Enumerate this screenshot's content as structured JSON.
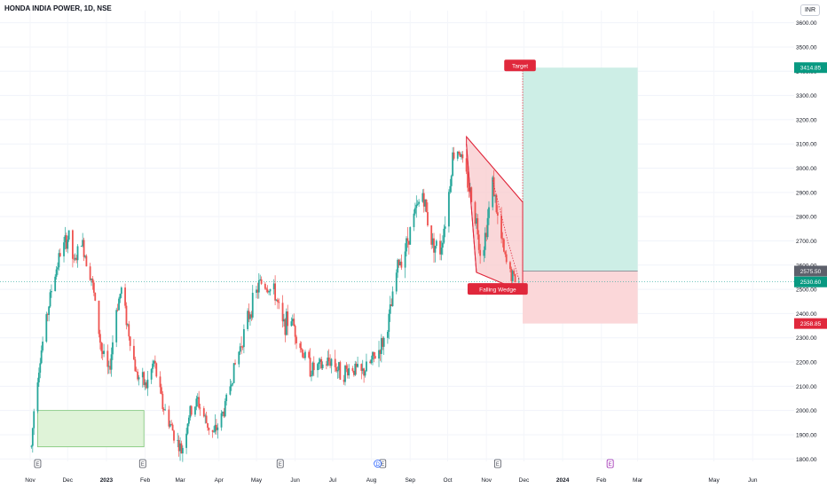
{
  "header": {
    "title": "HONDA INDIA POWER, 1D, NSE",
    "currency": "INR"
  },
  "colors": {
    "up": "#26a69a",
    "down": "#ef5350",
    "target_zone": "#cdeee6",
    "stop_zone": "#fbd7d9",
    "demand_zone": "#dff3d8",
    "wedge_fill": "#f8c9cc",
    "label_red": "#e0283c",
    "label_green": "#089981",
    "label_gray": "#5d606b"
  },
  "chart_data": {
    "type": "candlestick",
    "ylim": [
      1790,
      3650
    ],
    "y_ticks": [
      1800,
      1900,
      2000,
      2100,
      2200,
      2300,
      2400,
      2500,
      2600,
      2700,
      2800,
      2900,
      3000,
      3100,
      3200,
      3300,
      3400,
      3500,
      3600
    ],
    "y_tick_labels": [
      "1800.00",
      "1900.00",
      "2000.00",
      "2100.00",
      "2200.00",
      "2300.00",
      "2400.00",
      "2500.00",
      "2600.00",
      "2700.00",
      "2800.00",
      "2900.00",
      "3000.00",
      "3100.00",
      "3200.00",
      "3300.00",
      "3400.00",
      "3500.00",
      "3600.00"
    ],
    "x_range": [
      "2022-11-01",
      "2024-06-20"
    ],
    "x_ticks": [
      {
        "date": "2022-11-01",
        "label": "Nov"
      },
      {
        "date": "2022-12-01",
        "label": "Dec"
      },
      {
        "date": "2023-01-01",
        "label": "2023"
      },
      {
        "date": "2023-02-01",
        "label": "Feb"
      },
      {
        "date": "2023-03-01",
        "label": "Mar"
      },
      {
        "date": "2023-04-01",
        "label": "Apr"
      },
      {
        "date": "2023-05-01",
        "label": "May"
      },
      {
        "date": "2023-06-01",
        "label": "Jun"
      },
      {
        "date": "2023-07-01",
        "label": "Jul"
      },
      {
        "date": "2023-08-01",
        "label": "Aug"
      },
      {
        "date": "2023-09-01",
        "label": "Sep"
      },
      {
        "date": "2023-10-01",
        "label": "Oct"
      },
      {
        "date": "2023-11-01",
        "label": "Nov"
      },
      {
        "date": "2023-12-01",
        "label": "Dec"
      },
      {
        "date": "2024-01-01",
        "label": "2024"
      },
      {
        "date": "2024-02-01",
        "label": "Feb"
      },
      {
        "date": "2024-03-01",
        "label": "Mar"
      },
      {
        "date": "2024-05-01",
        "label": "May"
      },
      {
        "date": "2024-06-01",
        "label": "Jun"
      }
    ],
    "price_path": [
      {
        "date": "2022-11-02",
        "price": 1850
      },
      {
        "date": "2022-11-05",
        "price": 2080
      },
      {
        "date": "2022-11-10",
        "price": 2250
      },
      {
        "date": "2022-11-18",
        "price": 2500
      },
      {
        "date": "2022-11-25",
        "price": 2650
      },
      {
        "date": "2022-12-02",
        "price": 2720
      },
      {
        "date": "2022-12-06",
        "price": 2600
      },
      {
        "date": "2022-12-12",
        "price": 2700
      },
      {
        "date": "2022-12-20",
        "price": 2550
      },
      {
        "date": "2022-12-28",
        "price": 2250
      },
      {
        "date": "2023-01-03",
        "price": 2150
      },
      {
        "date": "2023-01-09",
        "price": 2420
      },
      {
        "date": "2023-01-13",
        "price": 2500
      },
      {
        "date": "2023-01-18",
        "price": 2350
      },
      {
        "date": "2023-01-25",
        "price": 2150
      },
      {
        "date": "2023-02-02",
        "price": 2100
      },
      {
        "date": "2023-02-08",
        "price": 2200
      },
      {
        "date": "2023-02-15",
        "price": 2020
      },
      {
        "date": "2023-02-22",
        "price": 1930
      },
      {
        "date": "2023-03-02",
        "price": 1830
      },
      {
        "date": "2023-03-08",
        "price": 1980
      },
      {
        "date": "2023-03-15",
        "price": 2040
      },
      {
        "date": "2023-03-22",
        "price": 1950
      },
      {
        "date": "2023-03-28",
        "price": 1900
      },
      {
        "date": "2023-04-05",
        "price": 2000
      },
      {
        "date": "2023-04-12",
        "price": 2150
      },
      {
        "date": "2023-04-20",
        "price": 2300
      },
      {
        "date": "2023-04-27",
        "price": 2430
      },
      {
        "date": "2023-05-04",
        "price": 2530
      },
      {
        "date": "2023-05-10",
        "price": 2510
      },
      {
        "date": "2023-05-16",
        "price": 2480
      },
      {
        "date": "2023-05-22",
        "price": 2350
      },
      {
        "date": "2023-05-29",
        "price": 2380
      },
      {
        "date": "2023-06-06",
        "price": 2250
      },
      {
        "date": "2023-06-14",
        "price": 2170
      },
      {
        "date": "2023-06-22",
        "price": 2180
      },
      {
        "date": "2023-06-30",
        "price": 2210
      },
      {
        "date": "2023-07-08",
        "price": 2150
      },
      {
        "date": "2023-07-16",
        "price": 2180
      },
      {
        "date": "2023-07-24",
        "price": 2150
      },
      {
        "date": "2023-08-01",
        "price": 2200
      },
      {
        "date": "2023-08-07",
        "price": 2250
      },
      {
        "date": "2023-08-12",
        "price": 2300
      },
      {
        "date": "2023-08-17",
        "price": 2430
      },
      {
        "date": "2023-08-22",
        "price": 2600
      },
      {
        "date": "2023-08-27",
        "price": 2650
      },
      {
        "date": "2023-09-04",
        "price": 2800
      },
      {
        "date": "2023-09-11",
        "price": 2900
      },
      {
        "date": "2023-09-18",
        "price": 2700
      },
      {
        "date": "2023-09-25",
        "price": 2660
      },
      {
        "date": "2023-10-01",
        "price": 2850
      },
      {
        "date": "2023-10-05",
        "price": 3050
      },
      {
        "date": "2023-10-10",
        "price": 3080
      },
      {
        "date": "2023-10-14",
        "price": 3000
      },
      {
        "date": "2023-10-19",
        "price": 2900
      },
      {
        "date": "2023-10-24",
        "price": 2780
      },
      {
        "date": "2023-10-28",
        "price": 2620
      },
      {
        "date": "2023-11-02",
        "price": 2790
      },
      {
        "date": "2023-11-06",
        "price": 2950
      },
      {
        "date": "2023-11-10",
        "price": 2790
      },
      {
        "date": "2023-11-16",
        "price": 2620
      },
      {
        "date": "2023-11-21",
        "price": 2560
      },
      {
        "date": "2023-11-24",
        "price": 2540
      },
      {
        "date": "2023-11-27",
        "price": 2530
      }
    ],
    "earnings_markers": [
      {
        "date": "2022-11-07",
        "label": "E",
        "color": "#50535e"
      },
      {
        "date": "2023-01-30",
        "label": "E",
        "color": "#50535e"
      },
      {
        "date": "2023-05-20",
        "label": "E",
        "color": "#50535e"
      },
      {
        "date": "2023-08-10",
        "label": "E",
        "color": "#50535e"
      },
      {
        "date": "2023-11-10",
        "label": "E",
        "color": "#50535e"
      },
      {
        "date": "2024-02-08",
        "label": "E",
        "color": "#9c27b0"
      }
    ],
    "dividend_marker": {
      "date": "2023-08-06",
      "label": "D",
      "color": "#2962ff"
    },
    "demand_zone": {
      "x_start": "2022-11-07",
      "x_end": "2023-01-31",
      "y_low": 1850,
      "y_high": 2000
    },
    "falling_wedge": {
      "label": "Falling Wedge",
      "upper_start": {
        "date": "2023-10-16",
        "price": 3130
      },
      "upper_end": {
        "date": "2023-11-30",
        "price": 2860
      },
      "lower_start": {
        "date": "2023-10-16",
        "price": 3090
      },
      "lower_end": {
        "date": "2023-11-30",
        "price": 2490
      },
      "lower_line_start": {
        "date": "2023-10-16",
        "price": 3100
      },
      "lower_line_mid": {
        "date": "2023-10-24",
        "price": 2570
      }
    },
    "position": {
      "x_start": "2023-11-30",
      "x_end": "2024-03-01",
      "entry": 2575.5,
      "target": 3414.85,
      "stop": 2358.85,
      "current": 2530.6,
      "target_label": "Target"
    },
    "price_labels": {
      "target": "3414.85",
      "entry": "2575.50",
      "current": "2530.60",
      "stop": "2358.85"
    }
  }
}
